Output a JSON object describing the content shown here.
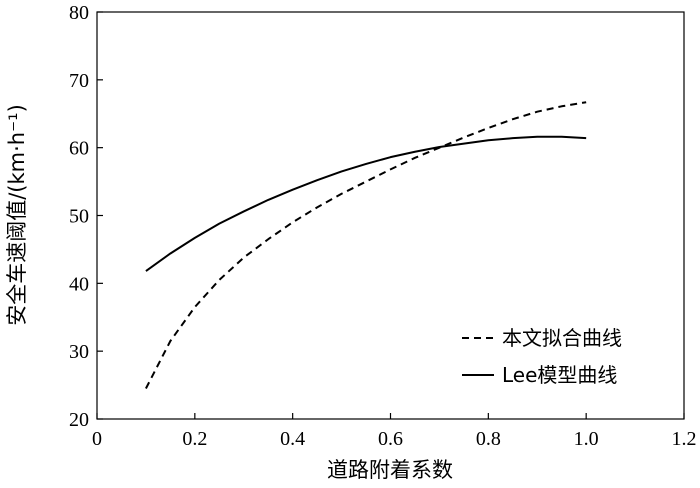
{
  "chart_data": {
    "type": "line",
    "title": "",
    "xlabel": "道路附着系数",
    "ylabel": "安全车速阈值/(km·h⁻¹)",
    "xlim": [
      0,
      1.2
    ],
    "ylim": [
      20,
      80
    ],
    "xticks": [
      0,
      0.2,
      0.4,
      0.6,
      0.8,
      1.0,
      1.2
    ],
    "xtick_labels": [
      "0",
      "0.2",
      "0.4",
      "0.6",
      "0.8",
      "1.0",
      "1.2"
    ],
    "yticks": [
      20,
      30,
      40,
      50,
      60,
      70,
      80
    ],
    "ytick_labels": [
      "20",
      "30",
      "40",
      "50",
      "60",
      "70",
      "80"
    ],
    "grid": false,
    "legend_position": "bottom-right",
    "series": [
      {
        "name": "本文拟合曲线",
        "style": "dashed",
        "color": "#000000",
        "x": [
          0.1,
          0.15,
          0.2,
          0.25,
          0.3,
          0.35,
          0.4,
          0.45,
          0.5,
          0.55,
          0.6,
          0.65,
          0.7,
          0.75,
          0.8,
          0.85,
          0.9,
          0.95,
          1.0
        ],
        "y": [
          24.5,
          31.5,
          36.5,
          40.5,
          43.8,
          46.5,
          49.0,
          51.2,
          53.2,
          55.0,
          56.8,
          58.5,
          60.0,
          61.5,
          62.9,
          64.2,
          65.3,
          66.1,
          66.7
        ]
      },
      {
        "name": "Lee模型曲线",
        "style": "solid",
        "color": "#000000",
        "x": [
          0.1,
          0.15,
          0.2,
          0.25,
          0.3,
          0.35,
          0.4,
          0.45,
          0.5,
          0.55,
          0.6,
          0.65,
          0.7,
          0.75,
          0.8,
          0.85,
          0.9,
          0.95,
          1.0
        ],
        "y": [
          41.8,
          44.4,
          46.7,
          48.8,
          50.6,
          52.3,
          53.8,
          55.2,
          56.5,
          57.6,
          58.6,
          59.4,
          60.1,
          60.6,
          61.1,
          61.4,
          61.6,
          61.6,
          61.4
        ]
      }
    ]
  }
}
